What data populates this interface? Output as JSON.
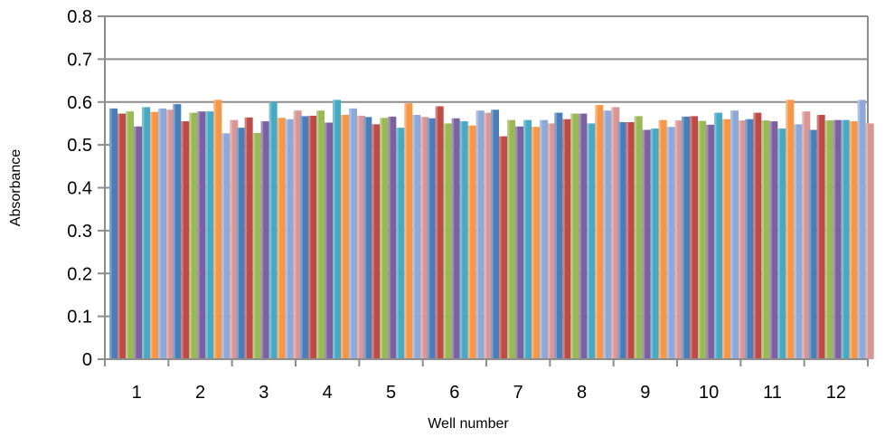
{
  "chart_data": {
    "type": "bar",
    "title": "",
    "xlabel": "Well number",
    "ylabel": "Absorbance",
    "ylim": [
      0,
      0.8
    ],
    "yticks": [
      "0",
      "0.1",
      "0.2",
      "0.3",
      "0.4",
      "0.5",
      "0.6",
      "0.7",
      "0.8"
    ],
    "categories": [
      "1",
      "2",
      "3",
      "4",
      "5",
      "6",
      "7",
      "8",
      "9",
      "10",
      "11",
      "12"
    ],
    "grid": "horizontal",
    "legend": "none",
    "colors": [
      "#4a7ebb",
      "#be4b48",
      "#98b954",
      "#7d60a0",
      "#46aac5",
      "#f79646",
      "#8ea9d9",
      "#d99694"
    ],
    "series": [
      {
        "values": [
          0.585,
          0.595,
          0.54,
          0.567,
          0.565,
          0.562,
          0.582,
          0.575,
          0.553,
          0.566,
          0.56,
          0.535
        ]
      },
      {
        "values": [
          0.573,
          0.555,
          0.564,
          0.568,
          0.548,
          0.59,
          0.52,
          0.56,
          0.553,
          0.567,
          0.575,
          0.57
        ]
      },
      {
        "values": [
          0.578,
          0.575,
          0.528,
          0.58,
          0.563,
          0.55,
          0.558,
          0.573,
          0.567,
          0.556,
          0.557,
          0.557
        ]
      },
      {
        "values": [
          0.543,
          0.578,
          0.555,
          0.552,
          0.566,
          0.562,
          0.543,
          0.573,
          0.535,
          0.547,
          0.555,
          0.558
        ]
      },
      {
        "values": [
          0.588,
          0.578,
          0.6,
          0.605,
          0.54,
          0.555,
          0.558,
          0.55,
          0.538,
          0.575,
          0.538,
          0.558
        ]
      },
      {
        "values": [
          0.577,
          0.605,
          0.563,
          0.57,
          0.597,
          0.545,
          0.542,
          0.593,
          0.558,
          0.56,
          0.605,
          0.555
        ]
      },
      {
        "values": [
          0.585,
          0.527,
          0.56,
          0.585,
          0.57,
          0.58,
          0.558,
          0.58,
          0.542,
          0.58,
          0.548,
          0.605
        ]
      },
      {
        "values": [
          0.582,
          0.558,
          0.58,
          0.568,
          0.565,
          0.575,
          0.55,
          0.588,
          0.557,
          0.557,
          0.578,
          0.55
        ]
      }
    ]
  }
}
